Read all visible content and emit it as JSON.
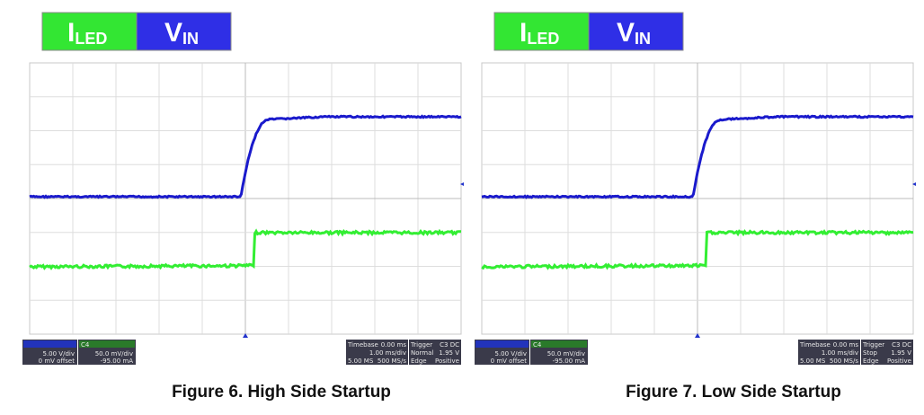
{
  "figures": [
    {
      "legend": {
        "current": {
          "main": "I",
          "sub": "LED"
        },
        "voltage": {
          "main": "V",
          "sub": "IN"
        }
      },
      "panel": {
        "ch3_scale": "5.00 V/div",
        "ch3_offset": "0 mV offset",
        "ch4_name": "C4",
        "ch4_scale": "50.0 mV/div",
        "ch4_offset": "-95.00 mA",
        "timebase_label": "Timebase",
        "timebase_delay": "0.00 ms",
        "timebase_scale": "1.00 ms/div",
        "samples": "5.00 MS",
        "rate": "500 MS/s",
        "trigger_label": "Trigger",
        "trigger_source": "C3 DC",
        "trigger_mode": "Normal",
        "trigger_level": "1.95 V",
        "trigger_type": "Edge",
        "trigger_slope": "Positive"
      },
      "caption": "Figure 6. High Side Startup"
    },
    {
      "legend": {
        "current": {
          "main": "I",
          "sub": "LED"
        },
        "voltage": {
          "main": "V",
          "sub": "IN"
        }
      },
      "panel": {
        "ch3_scale": "5.00 V/div",
        "ch3_offset": "0 mV offset",
        "ch4_name": "C4",
        "ch4_scale": "50.0 mV/div",
        "ch4_offset": "-95.00 mA",
        "timebase_label": "Timebase",
        "timebase_delay": "0.00 ms",
        "timebase_scale": "1.00 ms/div",
        "samples": "5.00 MS",
        "rate": "500 MS/s",
        "trigger_label": "Trigger",
        "trigger_source": "C3 DC",
        "trigger_mode": "Stop",
        "trigger_level": "1.95 V",
        "trigger_type": "Edge",
        "trigger_slope": "Positive"
      },
      "caption": "Figure 7. Low Side Startup"
    }
  ]
}
